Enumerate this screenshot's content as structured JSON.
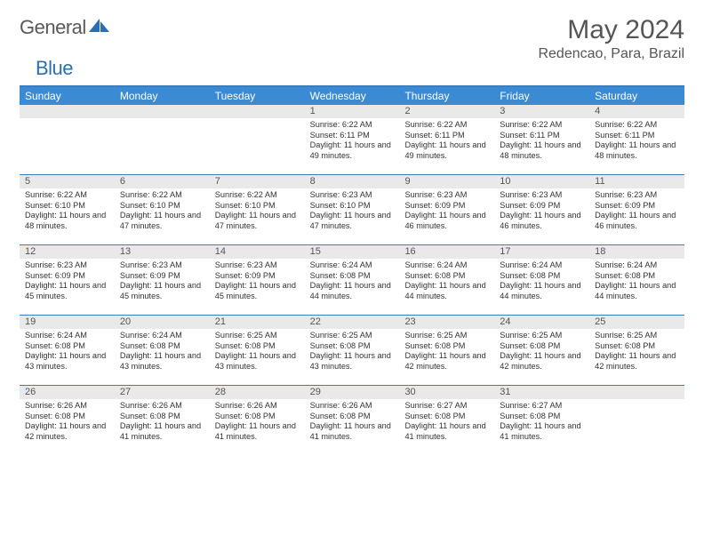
{
  "brand": {
    "name1": "General",
    "name2": "Blue",
    "accent_color": "#2a6fb5"
  },
  "title": "May 2024",
  "location": "Redencao, Para, Brazil",
  "colors": {
    "header_bg": "#3b8bd4",
    "header_border": "#3b7ec0",
    "band_bg": "#e9e9e9",
    "text_gray": "#555555"
  },
  "days_of_week": [
    "Sunday",
    "Monday",
    "Tuesday",
    "Wednesday",
    "Thursday",
    "Friday",
    "Saturday"
  ],
  "weeks": [
    [
      null,
      null,
      null,
      {
        "n": "1",
        "sr": "6:22 AM",
        "ss": "6:11 PM",
        "dl": "11 hours and 49 minutes."
      },
      {
        "n": "2",
        "sr": "6:22 AM",
        "ss": "6:11 PM",
        "dl": "11 hours and 49 minutes."
      },
      {
        "n": "3",
        "sr": "6:22 AM",
        "ss": "6:11 PM",
        "dl": "11 hours and 48 minutes."
      },
      {
        "n": "4",
        "sr": "6:22 AM",
        "ss": "6:11 PM",
        "dl": "11 hours and 48 minutes."
      }
    ],
    [
      {
        "n": "5",
        "sr": "6:22 AM",
        "ss": "6:10 PM",
        "dl": "11 hours and 48 minutes."
      },
      {
        "n": "6",
        "sr": "6:22 AM",
        "ss": "6:10 PM",
        "dl": "11 hours and 47 minutes."
      },
      {
        "n": "7",
        "sr": "6:22 AM",
        "ss": "6:10 PM",
        "dl": "11 hours and 47 minutes."
      },
      {
        "n": "8",
        "sr": "6:23 AM",
        "ss": "6:10 PM",
        "dl": "11 hours and 47 minutes."
      },
      {
        "n": "9",
        "sr": "6:23 AM",
        "ss": "6:09 PM",
        "dl": "11 hours and 46 minutes."
      },
      {
        "n": "10",
        "sr": "6:23 AM",
        "ss": "6:09 PM",
        "dl": "11 hours and 46 minutes."
      },
      {
        "n": "11",
        "sr": "6:23 AM",
        "ss": "6:09 PM",
        "dl": "11 hours and 46 minutes."
      }
    ],
    [
      {
        "n": "12",
        "sr": "6:23 AM",
        "ss": "6:09 PM",
        "dl": "11 hours and 45 minutes."
      },
      {
        "n": "13",
        "sr": "6:23 AM",
        "ss": "6:09 PM",
        "dl": "11 hours and 45 minutes."
      },
      {
        "n": "14",
        "sr": "6:23 AM",
        "ss": "6:09 PM",
        "dl": "11 hours and 45 minutes."
      },
      {
        "n": "15",
        "sr": "6:24 AM",
        "ss": "6:08 PM",
        "dl": "11 hours and 44 minutes."
      },
      {
        "n": "16",
        "sr": "6:24 AM",
        "ss": "6:08 PM",
        "dl": "11 hours and 44 minutes."
      },
      {
        "n": "17",
        "sr": "6:24 AM",
        "ss": "6:08 PM",
        "dl": "11 hours and 44 minutes."
      },
      {
        "n": "18",
        "sr": "6:24 AM",
        "ss": "6:08 PM",
        "dl": "11 hours and 44 minutes."
      }
    ],
    [
      {
        "n": "19",
        "sr": "6:24 AM",
        "ss": "6:08 PM",
        "dl": "11 hours and 43 minutes."
      },
      {
        "n": "20",
        "sr": "6:24 AM",
        "ss": "6:08 PM",
        "dl": "11 hours and 43 minutes."
      },
      {
        "n": "21",
        "sr": "6:25 AM",
        "ss": "6:08 PM",
        "dl": "11 hours and 43 minutes."
      },
      {
        "n": "22",
        "sr": "6:25 AM",
        "ss": "6:08 PM",
        "dl": "11 hours and 43 minutes."
      },
      {
        "n": "23",
        "sr": "6:25 AM",
        "ss": "6:08 PM",
        "dl": "11 hours and 42 minutes."
      },
      {
        "n": "24",
        "sr": "6:25 AM",
        "ss": "6:08 PM",
        "dl": "11 hours and 42 minutes."
      },
      {
        "n": "25",
        "sr": "6:25 AM",
        "ss": "6:08 PM",
        "dl": "11 hours and 42 minutes."
      }
    ],
    [
      {
        "n": "26",
        "sr": "6:26 AM",
        "ss": "6:08 PM",
        "dl": "11 hours and 42 minutes."
      },
      {
        "n": "27",
        "sr": "6:26 AM",
        "ss": "6:08 PM",
        "dl": "11 hours and 41 minutes."
      },
      {
        "n": "28",
        "sr": "6:26 AM",
        "ss": "6:08 PM",
        "dl": "11 hours and 41 minutes."
      },
      {
        "n": "29",
        "sr": "6:26 AM",
        "ss": "6:08 PM",
        "dl": "11 hours and 41 minutes."
      },
      {
        "n": "30",
        "sr": "6:27 AM",
        "ss": "6:08 PM",
        "dl": "11 hours and 41 minutes."
      },
      {
        "n": "31",
        "sr": "6:27 AM",
        "ss": "6:08 PM",
        "dl": "11 hours and 41 minutes."
      },
      null
    ]
  ],
  "labels": {
    "sunrise": "Sunrise: ",
    "sunset": "Sunset: ",
    "daylight": "Daylight: "
  }
}
